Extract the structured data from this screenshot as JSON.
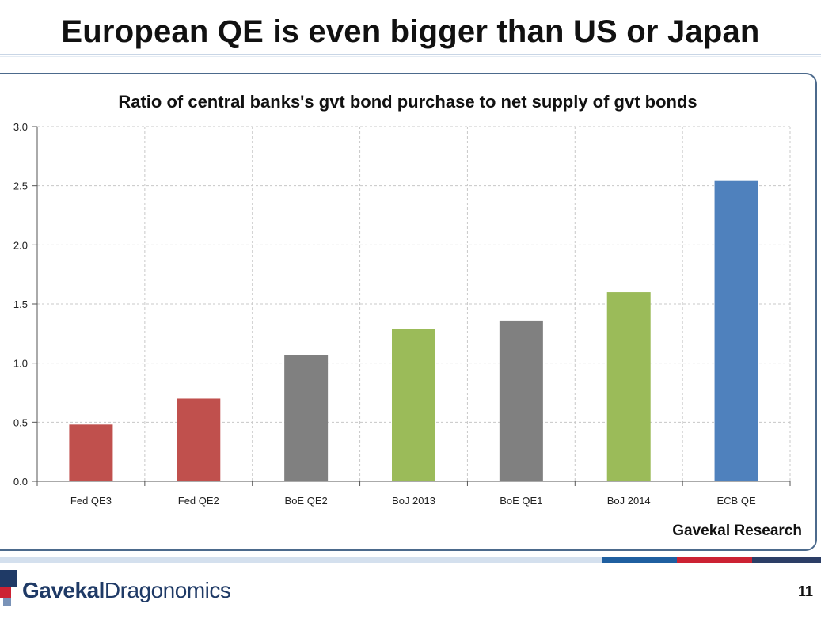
{
  "slide": {
    "title": "European QE is even bigger than US or Japan",
    "source": "Gavekal Research",
    "page_number": "11",
    "logo": {
      "part1": "Gavekal",
      "part2": "Dragonomics"
    }
  },
  "chart_data": {
    "type": "bar",
    "title": "Ratio of central banks's gvt bond purchase to net supply of gvt bonds",
    "categories": [
      "Fed QE3",
      "Fed QE2",
      "BoE QE2",
      "BoJ 2013",
      "BoE QE1",
      "BoJ 2014",
      "ECB QE"
    ],
    "values": [
      0.48,
      0.7,
      1.07,
      1.29,
      1.36,
      1.6,
      2.54
    ],
    "bar_colors": [
      "#c0504d",
      "#c0504d",
      "#808080",
      "#9bbb59",
      "#808080",
      "#9bbb59",
      "#4f81bd"
    ],
    "ylim": [
      0,
      3.0
    ],
    "yticks": [
      "0.0",
      "0.5",
      "1.0",
      "1.5",
      "2.0",
      "2.5",
      "3.0"
    ],
    "xlabel": "",
    "ylabel": "",
    "grid": true,
    "legend": "none"
  },
  "colors": {
    "frame": "#4c6a8c",
    "grid": "#c8c8c8"
  }
}
